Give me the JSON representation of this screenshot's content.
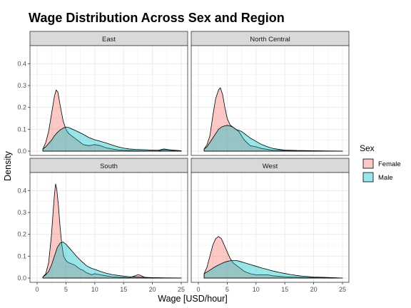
{
  "chart_data": {
    "type": "area",
    "title": "Wage Distribution Across Sex and Region",
    "xlabel": "Wage [USD/hour]",
    "ylabel": "Density",
    "xlim": [
      0,
      25
    ],
    "ylim": [
      0,
      0.45
    ],
    "x_ticks": [
      0,
      5,
      10,
      15,
      20,
      25
    ],
    "y_ticks": [
      0.0,
      0.1,
      0.2,
      0.3,
      0.4
    ],
    "y_tick_labels": [
      "0.0",
      "0.1",
      "0.2",
      "0.3",
      "0.4"
    ],
    "grid": true,
    "legend": {
      "title": "Sex",
      "position": "right",
      "entries": [
        "Female",
        "Male"
      ]
    },
    "colors": {
      "Female": "#F8766D",
      "Male": "#00BFC4",
      "strip_bg": "#D9D9D9",
      "grid": "#EBEBEB"
    },
    "facets": [
      {
        "label": "East",
        "series": [
          {
            "name": "Female",
            "x": [
              1,
              1.5,
              2,
              2.5,
              3,
              3.3,
              3.6,
              4,
              4.5,
              5,
              5.5,
              6,
              7,
              8,
              9,
              10,
              11,
              12,
              13,
              14,
              15,
              17,
              19,
              21,
              22,
              23,
              24,
              25
            ],
            "y": [
              0.01,
              0.04,
              0.09,
              0.17,
              0.25,
              0.28,
              0.27,
              0.21,
              0.14,
              0.1,
              0.08,
              0.07,
              0.05,
              0.03,
              0.025,
              0.03,
              0.025,
              0.015,
              0.01,
              0.006,
              0.004,
              0.002,
              0.001,
              0.001,
              0.006,
              0.004,
              0.002,
              0.001
            ]
          },
          {
            "name": "Male",
            "x": [
              1,
              1.5,
              2,
              2.5,
              3,
              3.5,
              4,
              4.5,
              5,
              5.5,
              6,
              7,
              8,
              9,
              10,
              11,
              12,
              13,
              14,
              15,
              16,
              17,
              19,
              21,
              22,
              23,
              24,
              25
            ],
            "y": [
              0.01,
              0.02,
              0.035,
              0.05,
              0.07,
              0.085,
              0.097,
              0.105,
              0.11,
              0.108,
              0.102,
              0.09,
              0.077,
              0.062,
              0.052,
              0.045,
              0.037,
              0.028,
              0.02,
              0.014,
              0.01,
              0.008,
              0.006,
              0.004,
              0.01,
              0.006,
              0.004,
              0.002
            ]
          }
        ]
      },
      {
        "label": "North Central",
        "series": [
          {
            "name": "Female",
            "x": [
              1,
              1.5,
              2,
              2.5,
              3,
              3.5,
              3.8,
              4.2,
              4.6,
              5,
              5.5,
              6,
              6.5,
              7,
              8,
              9,
              10,
              11,
              12,
              13,
              15,
              17,
              20,
              22,
              25
            ],
            "y": [
              0.01,
              0.03,
              0.07,
              0.16,
              0.24,
              0.28,
              0.29,
              0.26,
              0.2,
              0.15,
              0.12,
              0.11,
              0.1,
              0.09,
              0.05,
              0.025,
              0.02,
              0.012,
              0.008,
              0.004,
              0.003,
              0.002,
              0.001,
              0.0005,
              0.0
            ]
          },
          {
            "name": "Male",
            "x": [
              1,
              1.5,
              2,
              2.5,
              3,
              3.5,
              4,
              4.5,
              5,
              5.5,
              6,
              6.5,
              7,
              7.5,
              8,
              9,
              10,
              11,
              12,
              13,
              14,
              15,
              17,
              20,
              22,
              25
            ],
            "y": [
              0.01,
              0.02,
              0.04,
              0.06,
              0.08,
              0.1,
              0.11,
              0.115,
              0.118,
              0.115,
              0.11,
              0.1,
              0.095,
              0.09,
              0.08,
              0.06,
              0.045,
              0.03,
              0.02,
              0.012,
              0.008,
              0.005,
              0.003,
              0.002,
              0.001,
              0.0005
            ]
          }
        ]
      },
      {
        "label": "South",
        "series": [
          {
            "name": "Female",
            "x": [
              1,
              1.5,
              2,
              2.5,
              2.8,
              3,
              3.2,
              3.4,
              3.7,
              4,
              4.3,
              4.6,
              5,
              5.5,
              6,
              6.5,
              7,
              7.5,
              8,
              8.5,
              9,
              9.5,
              10,
              11,
              12,
              13,
              14,
              15,
              16,
              17,
              17.5,
              18,
              18.5,
              19,
              20,
              22,
              25
            ],
            "y": [
              0.005,
              0.02,
              0.07,
              0.2,
              0.31,
              0.38,
              0.43,
              0.41,
              0.33,
              0.23,
              0.15,
              0.1,
              0.08,
              0.07,
              0.065,
              0.06,
              0.05,
              0.04,
              0.035,
              0.025,
              0.02,
              0.015,
              0.02,
              0.015,
              0.01,
              0.006,
              0.004,
              0.003,
              0.002,
              0.01,
              0.015,
              0.012,
              0.005,
              0.002,
              0.001,
              0.0005,
              0.0
            ]
          },
          {
            "name": "Male",
            "x": [
              1,
              1.5,
              2,
              2.5,
              3,
              3.5,
              4,
              4.5,
              5,
              5.5,
              6,
              6.5,
              7,
              7.5,
              8,
              8.5,
              9,
              9.5,
              10,
              11,
              12,
              13,
              14,
              15,
              16,
              18,
              20,
              22,
              25
            ],
            "y": [
              0.005,
              0.015,
              0.03,
              0.06,
              0.1,
              0.14,
              0.16,
              0.165,
              0.155,
              0.14,
              0.125,
              0.11,
              0.095,
              0.082,
              0.07,
              0.058,
              0.05,
              0.044,
              0.04,
              0.03,
              0.022,
              0.016,
              0.012,
              0.009,
              0.006,
              0.004,
              0.002,
              0.001,
              0.0005
            ]
          }
        ]
      },
      {
        "label": "West",
        "series": [
          {
            "name": "Female",
            "x": [
              1,
              1.5,
              2,
              2.5,
              3,
              3.5,
              4,
              4.5,
              5,
              5.5,
              6,
              6.5,
              7,
              7.5,
              8,
              9,
              10,
              11,
              12,
              13,
              14,
              15,
              17,
              20,
              23,
              25
            ],
            "y": [
              0.02,
              0.05,
              0.1,
              0.15,
              0.18,
              0.19,
              0.18,
              0.15,
              0.12,
              0.09,
              0.07,
              0.06,
              0.05,
              0.04,
              0.03,
              0.02,
              0.015,
              0.015,
              0.015,
              0.01,
              0.008,
              0.006,
              0.004,
              0.002,
              0.001,
              0.0
            ]
          },
          {
            "name": "Male",
            "x": [
              1,
              1.5,
              2,
              2.5,
              3,
              3.5,
              4,
              4.5,
              5,
              5.5,
              6,
              6.5,
              7,
              7.5,
              8,
              8.5,
              9,
              10,
              11,
              12,
              13,
              14,
              15,
              16,
              17,
              18,
              20,
              22,
              24,
              25
            ],
            "y": [
              0.02,
              0.028,
              0.036,
              0.045,
              0.053,
              0.06,
              0.066,
              0.072,
              0.076,
              0.079,
              0.08,
              0.08,
              0.078,
              0.074,
              0.07,
              0.066,
              0.062,
              0.054,
              0.046,
              0.039,
              0.032,
              0.026,
              0.021,
              0.016,
              0.012,
              0.009,
              0.005,
              0.003,
              0.001,
              0.0
            ]
          }
        ]
      }
    ]
  }
}
